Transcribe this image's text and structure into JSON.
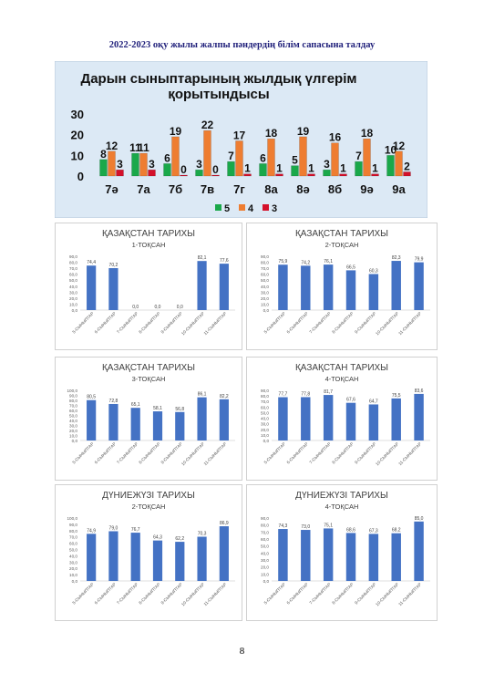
{
  "page": {
    "heading": "2022-2023 оқу жылы жалпы пәндердің білім сапасына талдау",
    "page_number": "8"
  },
  "chart_data": [
    {
      "type": "bar",
      "title": "Дарын сыныптарының жылдық үлгерім қорытындысы",
      "title_lines": [
        "Дарын сыныптарының жылдық үлгерім",
        "қорытындысы"
      ],
      "categories": [
        "7ә",
        "7а",
        "7б",
        "7в",
        "7г",
        "8а",
        "8ә",
        "8б",
        "9ә",
        "9а"
      ],
      "series": [
        {
          "name": "5",
          "color": "#1aa84a",
          "values": [
            8,
            11,
            6,
            3,
            7,
            6,
            5,
            3,
            7,
            10
          ]
        },
        {
          "name": "4",
          "color": "#ee7d31",
          "values": [
            12,
            11,
            19,
            22,
            17,
            18,
            19,
            16,
            18,
            12
          ]
        },
        {
          "name": "3",
          "color": "#d4102a",
          "values": [
            3,
            3,
            0,
            0,
            1,
            1,
            1,
            1,
            1,
            2
          ]
        }
      ],
      "ylim": [
        0,
        30
      ],
      "yticks": [
        "0",
        "10",
        "20",
        "30"
      ],
      "background": "#dce9f5",
      "legend": "bottom"
    },
    {
      "type": "bar",
      "title": "ҚАЗАҚСТАН ТАРИХЫ",
      "subtitle": "1-ТОҚСАН",
      "categories": [
        "5-СЫНЫПТАР",
        "6-СЫНЫПТАР",
        "7-СЫНЫПТАР",
        "8-СЫНЫПТАР",
        "9-СЫНЫПТАР",
        "10-СЫНЫПТАР",
        "11-СЫНЫПТАР"
      ],
      "values": [
        74.4,
        70.2,
        0.0,
        0.0,
        0.0,
        82.1,
        77.6
      ],
      "labels": [
        "74,4",
        "70,2",
        "0,0",
        "0,0",
        "0,0",
        "82,1",
        "77,6"
      ],
      "ylim": [
        0,
        90
      ],
      "yticks": [
        "0,0",
        "10,0",
        "20,0",
        "30,0",
        "40,0",
        "50,0",
        "60,0",
        "70,0",
        "80,0",
        "90,0"
      ],
      "color": "#4472c4"
    },
    {
      "type": "bar",
      "title": "ҚАЗАҚСТАН ТАРИХЫ",
      "subtitle": "2-ТОҚСАН",
      "categories": [
        "5-СЫНЫПТАР",
        "6-СЫНЫПТАР",
        "7-СЫНЫПТАР",
        "8-СЫНЫПТАР",
        "9-СЫНЫПТАР",
        "10-СЫНЫПТАР",
        "11-СЫНЫПТАР"
      ],
      "values": [
        75.9,
        74.2,
        76.1,
        66.5,
        60.3,
        82.3,
        79.9
      ],
      "labels": [
        "75,9",
        "74,2",
        "76,1",
        "66,5",
        "60,3",
        "82,3",
        "79,9"
      ],
      "ylim": [
        0,
        90
      ],
      "yticks": [
        "0,0",
        "10,0",
        "20,0",
        "30,0",
        "40,0",
        "50,0",
        "60,0",
        "70,0",
        "80,0",
        "90,0"
      ],
      "color": "#4472c4"
    },
    {
      "type": "bar",
      "title": "ҚАЗАҚСТАН ТАРИХЫ",
      "subtitle": "3-ТОҚСАН",
      "categories": [
        "5-СЫНЫПТАР",
        "6-СЫНЫПТАР",
        "7-СЫНЫПТАР",
        "8-СЫНЫПТАР",
        "9-СЫНЫПТАР",
        "10-СЫНЫПТАР",
        "11-СЫНЫПТАР"
      ],
      "values": [
        80.5,
        72.8,
        65.1,
        58.1,
        56.8,
        86.1,
        82.2
      ],
      "labels": [
        "80,5",
        "72,8",
        "65,1",
        "58,1",
        "56,8",
        "86,1",
        "82,2"
      ],
      "ylim": [
        0,
        100
      ],
      "yticks": [
        "0,0",
        "10,0",
        "20,0",
        "30,0",
        "40,0",
        "50,0",
        "60,0",
        "70,0",
        "80,0",
        "90,0",
        "100,0"
      ],
      "color": "#4472c4"
    },
    {
      "type": "bar",
      "title": "ҚАЗАҚСТАН ТАРИХЫ",
      "subtitle": "4-ТОҚСАН",
      "categories": [
        "5-СЫНЫПТАР",
        "6-СЫНЫПТАР",
        "7-СЫНЫПТАР",
        "8-СЫНЫПТАР",
        "9-СЫНЫПТАР",
        "10-СЫНЫПТАР",
        "11-СЫНЫПТАР"
      ],
      "values": [
        77.7,
        77.8,
        81.7,
        67.6,
        64.7,
        75.5,
        83.6
      ],
      "labels": [
        "77,7",
        "77,8",
        "81,7",
        "67,6",
        "64,7",
        "75,5",
        "83,6"
      ],
      "ylim": [
        0,
        90
      ],
      "yticks": [
        "0,0",
        "10,0",
        "20,0",
        "30,0",
        "40,0",
        "50,0",
        "60,0",
        "70,0",
        "80,0",
        "90,0"
      ],
      "color": "#4472c4"
    },
    {
      "type": "bar",
      "title": "ДҮНИЕЖҮЗІ ТАРИХЫ",
      "subtitle": "2-ТОҚСАН",
      "categories": [
        "5-СЫНЫПТАР",
        "6-СЫНЫПТАР",
        "7-СЫНЫПТАР",
        "8-СЫНЫПТАР",
        "9-СЫНЫПТАР",
        "10-СЫНЫПТАР",
        "11-СЫНЫПТАР"
      ],
      "values": [
        74.9,
        79.0,
        76.7,
        64.3,
        62.2,
        70.3,
        86.9
      ],
      "labels": [
        "74,9",
        "79,0",
        "76,7",
        "64,3",
        "62,2",
        "70,3",
        "86,9"
      ],
      "ylim": [
        0,
        100
      ],
      "yticks": [
        "0,0",
        "10,0",
        "20,0",
        "30,0",
        "40,0",
        "50,0",
        "60,0",
        "70,0",
        "80,0",
        "90,0",
        "100,0"
      ],
      "color": "#4472c4"
    },
    {
      "type": "bar",
      "title": "ДҮНИЕЖҮЗІ ТАРИХЫ",
      "subtitle": "4-ТОҚСАН",
      "categories": [
        "5-СЫНЫПТАР",
        "6-СЫНЫПТАР",
        "7-СЫНЫПТАР",
        "8-СЫНЫПТАР",
        "9-СЫНЫПТАР",
        "10-СЫНЫПТАР",
        "11-СЫНЫПТАР"
      ],
      "values": [
        74.3,
        73.0,
        75.1,
        68.6,
        67.3,
        68.2,
        85.0
      ],
      "labels": [
        "74,3",
        "73,0",
        "75,1",
        "68,6",
        "67,3",
        "68,2",
        "85,0"
      ],
      "ylim": [
        0,
        90
      ],
      "yticks": [
        "0,0",
        "10,0",
        "20,0",
        "30,0",
        "40,0",
        "50,0",
        "60,0",
        "70,0",
        "80,0",
        "90,0"
      ],
      "color": "#4472c4"
    }
  ]
}
